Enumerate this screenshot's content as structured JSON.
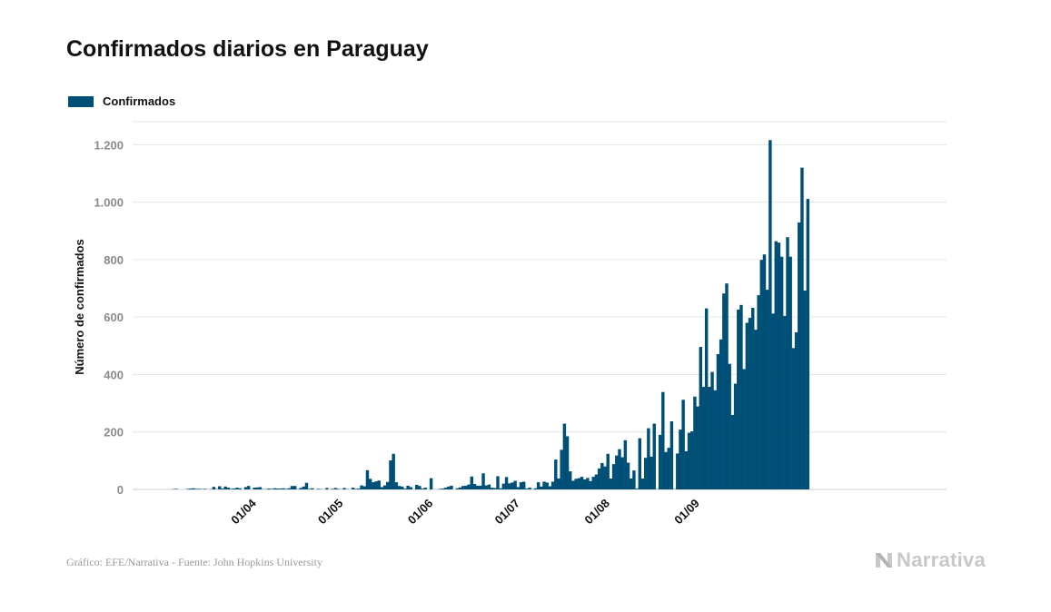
{
  "title": "Confirmados diarios en Paraguay",
  "legend": {
    "label": "Confirmados"
  },
  "footer": {
    "source": "Gráfico: EFE/Narrativa - Fuente: John Hopkins University",
    "brand": "Narrativa"
  },
  "colors": {
    "bar": "#004f76",
    "grid": "#e6e6e6",
    "axis": "#cfcfcf",
    "brand": "#c8c8c8"
  },
  "chart_data": {
    "type": "bar",
    "title": "Confirmados diarios en Paraguay",
    "xlabel": "",
    "ylabel": "Número de confirmados",
    "ylim": [
      0,
      1280
    ],
    "grid": true,
    "legend_position": "top-left",
    "x_start": "2020-03-07",
    "x_ticks": [
      "01/04",
      "01/05",
      "01/06",
      "01/07",
      "01/08",
      "01/09"
    ],
    "x_tick_dates": [
      "2020-04-01",
      "2020-05-01",
      "2020-06-01",
      "2020-07-01",
      "2020-08-01",
      "2020-09-01"
    ],
    "y_ticks": [
      0,
      200,
      400,
      600,
      800,
      1000,
      1200
    ],
    "y_tick_labels": [
      "0",
      "200",
      "400",
      "600",
      "800",
      "1.000",
      "1.200"
    ],
    "series": [
      {
        "name": "Confirmados",
        "values": [
          1,
          2,
          0,
          0,
          0,
          2,
          3,
          4,
          2,
          2,
          1,
          2,
          0,
          1,
          9,
          1,
          11,
          3,
          10,
          6,
          2,
          3,
          6,
          4,
          0,
          8,
          12,
          0,
          6,
          7,
          8,
          1,
          1,
          3,
          2,
          4,
          3,
          3,
          4,
          2,
          4,
          12,
          12,
          1,
          5,
          10,
          23,
          2,
          4,
          0,
          2,
          1,
          0,
          5,
          0,
          2,
          5,
          2,
          0,
          5,
          1,
          0,
          6,
          2,
          3,
          14,
          11,
          67,
          37,
          25,
          28,
          31,
          8,
          14,
          26,
          101,
          124,
          25,
          12,
          10,
          3,
          13,
          8,
          0,
          16,
          12,
          3,
          6,
          0,
          39,
          0,
          0,
          2,
          3,
          6,
          10,
          13,
          0,
          4,
          7,
          12,
          13,
          17,
          45,
          19,
          13,
          13,
          56,
          14,
          17,
          6,
          5,
          46,
          4,
          20,
          43,
          21,
          24,
          30,
          8,
          25,
          27,
          3,
          6,
          1,
          4,
          25,
          10,
          27,
          24,
          11,
          27,
          104,
          38,
          138,
          229,
          185,
          63,
          30,
          37,
          39,
          44,
          35,
          40,
          29,
          44,
          52,
          73,
          92,
          80,
          124,
          38,
          88,
          118,
          140,
          112,
          171,
          93,
          38,
          66,
          3,
          178,
          38,
          110,
          213,
          114,
          229,
          1,
          190,
          339,
          130,
          145,
          237,
          1,
          125,
          208,
          312,
          133,
          197,
          202,
          323,
          289,
          496,
          357,
          630,
          357,
          409,
          345,
          471,
          522,
          682,
          717,
          437,
          259,
          368,
          626,
          642,
          419,
          580,
          597,
          632,
          556,
          676,
          799,
          818,
          695,
          1216,
          612,
          864,
          859,
          810,
          604,
          878,
          810,
          492,
          547,
          929,
          1120,
          692,
          1011
        ]
      }
    ]
  }
}
